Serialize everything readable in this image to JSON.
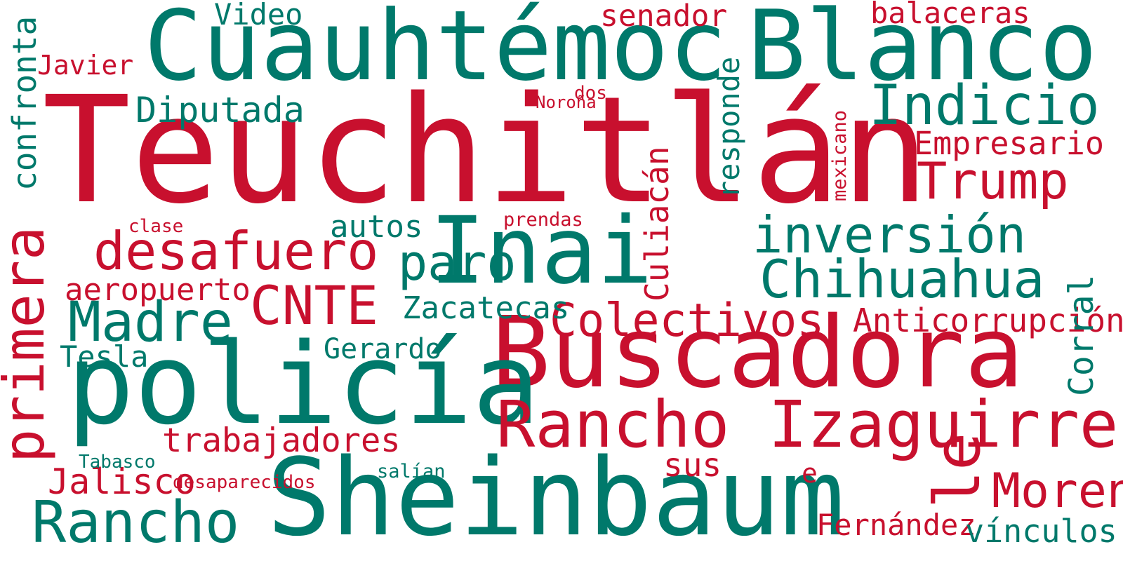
{
  "colors": {
    "red": "#c8102e",
    "green": "#00796b",
    "background": "#ffffff"
  },
  "words": [
    {
      "text": "Teuchitlán",
      "color": "red"
    },
    {
      "text": "Cuauhtémoc",
      "color": "green"
    },
    {
      "text": "Blanco",
      "color": "green"
    },
    {
      "text": "Buscadora",
      "color": "red"
    },
    {
      "text": "Sheinbaum",
      "color": "green"
    },
    {
      "text": "policía",
      "color": "green"
    },
    {
      "text": "Inai",
      "color": "green"
    },
    {
      "text": "Rancho Izaguirre",
      "color": "red"
    },
    {
      "text": "Indicio",
      "color": "green"
    },
    {
      "text": "desafuero",
      "color": "red"
    },
    {
      "text": "inversión",
      "color": "green"
    },
    {
      "text": "Chihuahua",
      "color": "green"
    },
    {
      "text": "Trump",
      "color": "red"
    },
    {
      "text": "Colectivos",
      "color": "red"
    },
    {
      "text": "Madre",
      "color": "green"
    },
    {
      "text": "CNTE",
      "color": "red"
    },
    {
      "text": "Rancho",
      "color": "green"
    },
    {
      "text": "Diputada",
      "color": "green"
    },
    {
      "text": "trabajadores",
      "color": "red"
    },
    {
      "text": "Anticorrupción",
      "color": "red"
    },
    {
      "text": "Empresario",
      "color": "red"
    },
    {
      "text": "balaceras",
      "color": "red"
    },
    {
      "text": "aeropuerto",
      "color": "red"
    },
    {
      "text": "Zacatecas",
      "color": "green"
    },
    {
      "text": "Jalisco",
      "color": "red"
    },
    {
      "text": "Morena",
      "color": "red"
    },
    {
      "text": "sus",
      "color": "red"
    },
    {
      "text": "senador",
      "color": "red"
    },
    {
      "text": "Video",
      "color": "green"
    },
    {
      "text": "autos",
      "color": "green"
    },
    {
      "text": "Tesla",
      "color": "green"
    },
    {
      "text": "Gerardo",
      "color": "green"
    },
    {
      "text": "paro",
      "color": "green"
    },
    {
      "text": "e",
      "color": "red"
    },
    {
      "text": "Fernández",
      "color": "red"
    },
    {
      "text": "vínculos",
      "color": "green"
    },
    {
      "text": "Javier",
      "color": "red"
    },
    {
      "text": "Noroña",
      "color": "red"
    },
    {
      "text": "dos",
      "color": "red"
    },
    {
      "text": "clase",
      "color": "red"
    },
    {
      "text": "prendas",
      "color": "red"
    },
    {
      "text": "Tabasco",
      "color": "green"
    },
    {
      "text": "desaparecidos",
      "color": "red"
    },
    {
      "text": "salían",
      "color": "green"
    },
    {
      "text": "primera",
      "color": "red"
    },
    {
      "text": "confronta",
      "color": "green"
    },
    {
      "text": "Culiacán",
      "color": "red"
    },
    {
      "text": "responde",
      "color": "green"
    },
    {
      "text": "mexicano",
      "color": "red"
    },
    {
      "text": "Corral",
      "color": "green"
    },
    {
      "text": "le",
      "color": "red"
    }
  ]
}
